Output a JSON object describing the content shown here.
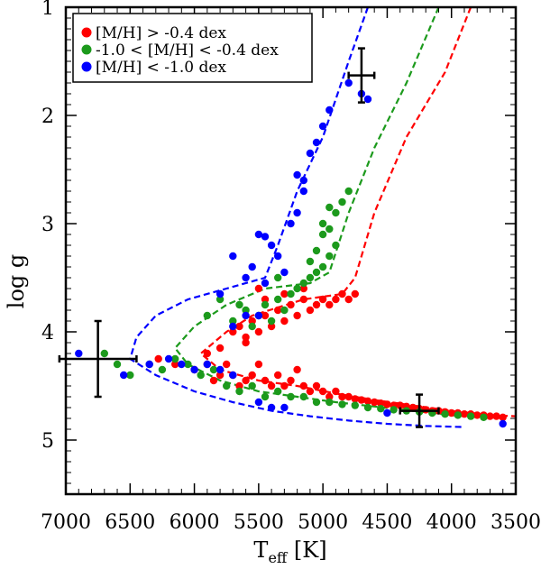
{
  "chart_data": {
    "type": "scatter",
    "title": "",
    "xlabel_main": "T",
    "xlabel_sub": "eff",
    "xlabel_unit": " [K]",
    "ylabel": "log g",
    "xlim": [
      7000,
      3500
    ],
    "ylim": [
      1.0,
      5.5
    ],
    "x_reversed": true,
    "y_reversed": true,
    "x_ticks": [
      7000,
      6500,
      6000,
      5500,
      5000,
      4500,
      4000,
      3500
    ],
    "x_tick_labels": [
      "7000",
      "6500",
      "6000",
      "5500",
      "5000",
      "4500",
      "4000",
      "3500"
    ],
    "y_ticks": [
      1,
      2,
      3,
      4,
      5
    ],
    "y_tick_labels": [
      "1",
      "2",
      "3",
      "4",
      "5"
    ],
    "legend_position": "top-left",
    "series": [
      {
        "name": "[M/H] > -0.4 dex",
        "color": "#ff0000",
        "points": [
          [
            6280,
            4.25
          ],
          [
            6150,
            4.3
          ],
          [
            6000,
            4.35
          ],
          [
            5900,
            4.3
          ],
          [
            5850,
            4.45
          ],
          [
            5800,
            4.4
          ],
          [
            5750,
            4.3
          ],
          [
            5700,
            4.4
          ],
          [
            5650,
            4.5
          ],
          [
            5600,
            4.45
          ],
          [
            5550,
            4.4
          ],
          [
            5500,
            4.3
          ],
          [
            5450,
            4.45
          ],
          [
            5400,
            4.5
          ],
          [
            5350,
            4.4
          ],
          [
            5300,
            4.5
          ],
          [
            5250,
            4.45
          ],
          [
            5200,
            4.35
          ],
          [
            5150,
            4.5
          ],
          [
            5100,
            4.55
          ],
          [
            5050,
            4.5
          ],
          [
            5000,
            4.55
          ],
          [
            4950,
            4.6
          ],
          [
            4900,
            4.55
          ],
          [
            4850,
            4.6
          ],
          [
            4800,
            4.6
          ],
          [
            4750,
            4.62
          ],
          [
            4700,
            4.63
          ],
          [
            4650,
            4.64
          ],
          [
            4600,
            4.65
          ],
          [
            4550,
            4.66
          ],
          [
            4500,
            4.67
          ],
          [
            4450,
            4.68
          ],
          [
            4400,
            4.68
          ],
          [
            4350,
            4.69
          ],
          [
            4300,
            4.7
          ],
          [
            4250,
            4.71
          ],
          [
            4200,
            4.72
          ],
          [
            4150,
            4.73
          ],
          [
            4100,
            4.73
          ],
          [
            4050,
            4.74
          ],
          [
            4000,
            4.75
          ],
          [
            3950,
            4.75
          ],
          [
            3900,
            4.76
          ],
          [
            3850,
            4.76
          ],
          [
            3800,
            4.77
          ],
          [
            3750,
            4.77
          ],
          [
            3700,
            4.78
          ],
          [
            3650,
            4.78
          ],
          [
            3600,
            4.79
          ],
          [
            5700,
            4.0
          ],
          [
            5650,
            3.95
          ],
          [
            5600,
            4.05
          ],
          [
            5550,
            3.9
          ],
          [
            5500,
            4.0
          ],
          [
            5450,
            3.85
          ],
          [
            5400,
            3.95
          ],
          [
            5350,
            3.8
          ],
          [
            5300,
            3.9
          ],
          [
            5250,
            3.75
          ],
          [
            5200,
            3.85
          ],
          [
            5150,
            3.7
          ],
          [
            5100,
            3.8
          ],
          [
            5050,
            3.75
          ],
          [
            5000,
            3.7
          ],
          [
            4950,
            3.75
          ],
          [
            4900,
            3.7
          ],
          [
            4850,
            3.65
          ],
          [
            4800,
            3.7
          ],
          [
            4750,
            3.65
          ],
          [
            5500,
            3.6
          ],
          [
            5450,
            3.7
          ],
          [
            5300,
            3.65
          ],
          [
            5150,
            3.6
          ],
          [
            5900,
            4.2
          ],
          [
            5800,
            4.15
          ],
          [
            5600,
            4.1
          ]
        ]
      },
      {
        "name": "-1.0 < [M/H] < -0.4 dex",
        "color": "#1c9a1c",
        "points": [
          [
            6700,
            4.2
          ],
          [
            6600,
            4.3
          ],
          [
            6500,
            4.4
          ],
          [
            6350,
            4.3
          ],
          [
            6250,
            4.35
          ],
          [
            6150,
            4.25
          ],
          [
            6050,
            4.3
          ],
          [
            5950,
            4.4
          ],
          [
            5850,
            4.35
          ],
          [
            5750,
            4.5
          ],
          [
            5650,
            4.55
          ],
          [
            5550,
            4.5
          ],
          [
            5450,
            4.6
          ],
          [
            5350,
            4.55
          ],
          [
            5250,
            4.6
          ],
          [
            5150,
            4.6
          ],
          [
            5050,
            4.65
          ],
          [
            4950,
            4.65
          ],
          [
            4850,
            4.67
          ],
          [
            4750,
            4.68
          ],
          [
            4650,
            4.7
          ],
          [
            4550,
            4.71
          ],
          [
            4450,
            4.72
          ],
          [
            4350,
            4.73
          ],
          [
            4250,
            4.74
          ],
          [
            4150,
            4.75
          ],
          [
            4050,
            4.76
          ],
          [
            3950,
            4.77
          ],
          [
            3850,
            4.78
          ],
          [
            3750,
            4.79
          ],
          [
            5700,
            3.9
          ],
          [
            5600,
            3.8
          ],
          [
            5550,
            3.95
          ],
          [
            5500,
            3.85
          ],
          [
            5450,
            3.75
          ],
          [
            5400,
            3.9
          ],
          [
            5350,
            3.7
          ],
          [
            5300,
            3.8
          ],
          [
            5250,
            3.65
          ],
          [
            5200,
            3.6
          ],
          [
            5150,
            3.55
          ],
          [
            5100,
            3.5
          ],
          [
            5050,
            3.45
          ],
          [
            5000,
            3.4
          ],
          [
            4950,
            3.3
          ],
          [
            4900,
            3.2
          ],
          [
            5050,
            3.25
          ],
          [
            5100,
            3.35
          ],
          [
            5000,
            3.1
          ],
          [
            4950,
            3.05
          ],
          [
            4900,
            2.9
          ],
          [
            4850,
            2.8
          ],
          [
            4800,
            2.7
          ],
          [
            4950,
            2.85
          ],
          [
            5000,
            3.0
          ],
          [
            5800,
            3.7
          ],
          [
            5650,
            3.75
          ],
          [
            5900,
            3.85
          ],
          [
            5350,
            3.5
          ]
        ]
      },
      {
        "name": "[M/H] < -1.0 dex",
        "color": "#0000ff",
        "points": [
          [
            6900,
            4.2
          ],
          [
            6550,
            4.4
          ],
          [
            6350,
            4.3
          ],
          [
            6200,
            4.25
          ],
          [
            6100,
            4.3
          ],
          [
            6000,
            4.35
          ],
          [
            5900,
            4.3
          ],
          [
            5800,
            4.35
          ],
          [
            5700,
            4.4
          ],
          [
            5500,
            4.65
          ],
          [
            5400,
            4.7
          ],
          [
            5300,
            4.7
          ],
          [
            4500,
            4.75
          ],
          [
            3600,
            4.85
          ],
          [
            5700,
            3.3
          ],
          [
            5600,
            3.5
          ],
          [
            5550,
            3.4
          ],
          [
            5500,
            3.1
          ],
          [
            5450,
            3.12
          ],
          [
            5400,
            3.2
          ],
          [
            5350,
            3.3
          ],
          [
            5300,
            3.45
          ],
          [
            5250,
            3.0
          ],
          [
            5200,
            2.9
          ],
          [
            5150,
            2.7
          ],
          [
            5200,
            2.55
          ],
          [
            5150,
            2.6
          ],
          [
            5100,
            2.35
          ],
          [
            5050,
            2.25
          ],
          [
            5000,
            2.1
          ],
          [
            4950,
            1.95
          ],
          [
            4800,
            1.7
          ],
          [
            4700,
            1.8
          ],
          [
            4650,
            1.85
          ],
          [
            5600,
            3.85
          ],
          [
            5700,
            3.95
          ],
          [
            5500,
            3.85
          ],
          [
            5450,
            3.55
          ],
          [
            5800,
            3.65
          ]
        ]
      }
    ],
    "isochrones": [
      {
        "color": "#ff0000",
        "points": [
          [
            3850,
            1.0
          ],
          [
            4050,
            1.6
          ],
          [
            4350,
            2.2
          ],
          [
            4600,
            2.9
          ],
          [
            4750,
            3.5
          ],
          [
            4850,
            3.65
          ],
          [
            5150,
            3.7
          ],
          [
            5550,
            3.85
          ],
          [
            5750,
            4.0
          ],
          [
            5950,
            4.2
          ],
          [
            5800,
            4.35
          ],
          [
            5500,
            4.45
          ],
          [
            5200,
            4.5
          ],
          [
            4900,
            4.57
          ],
          [
            4600,
            4.63
          ],
          [
            4300,
            4.68
          ],
          [
            4000,
            4.73
          ],
          [
            3700,
            4.77
          ],
          [
            3500,
            4.78
          ]
        ]
      },
      {
        "color": "#1c9a1c",
        "points": [
          [
            4100,
            1.0
          ],
          [
            4350,
            1.7
          ],
          [
            4600,
            2.3
          ],
          [
            4800,
            2.9
          ],
          [
            4950,
            3.45
          ],
          [
            5100,
            3.55
          ],
          [
            5450,
            3.6
          ],
          [
            5750,
            3.75
          ],
          [
            6000,
            3.95
          ],
          [
            6150,
            4.15
          ],
          [
            6050,
            4.3
          ],
          [
            5800,
            4.45
          ],
          [
            5500,
            4.55
          ],
          [
            5200,
            4.6
          ],
          [
            4900,
            4.65
          ],
          [
            4600,
            4.69
          ],
          [
            4300,
            4.73
          ],
          [
            4000,
            4.77
          ],
          [
            3800,
            4.79
          ]
        ]
      },
      {
        "color": "#0000ff",
        "points": [
          [
            4650,
            1.0
          ],
          [
            4800,
            1.5
          ],
          [
            5000,
            2.2
          ],
          [
            5200,
            2.7
          ],
          [
            5350,
            3.2
          ],
          [
            5450,
            3.5
          ],
          [
            5750,
            3.6
          ],
          [
            6050,
            3.7
          ],
          [
            6300,
            3.85
          ],
          [
            6450,
            4.05
          ],
          [
            6500,
            4.25
          ],
          [
            6300,
            4.4
          ],
          [
            6000,
            4.55
          ],
          [
            5700,
            4.65
          ],
          [
            5400,
            4.73
          ],
          [
            5100,
            4.78
          ],
          [
            4800,
            4.82
          ],
          [
            4500,
            4.85
          ],
          [
            4200,
            4.87
          ],
          [
            3900,
            4.88
          ]
        ]
      }
    ],
    "error_bars": [
      {
        "x": 6750,
        "y": 4.25,
        "xerr": 300,
        "yerr": 0.35
      },
      {
        "x": 4700,
        "y": 1.63,
        "xerr": 100,
        "yerr": 0.25
      },
      {
        "x": 4250,
        "y": 4.73,
        "xerr": 150,
        "yerr": 0.15
      }
    ]
  }
}
